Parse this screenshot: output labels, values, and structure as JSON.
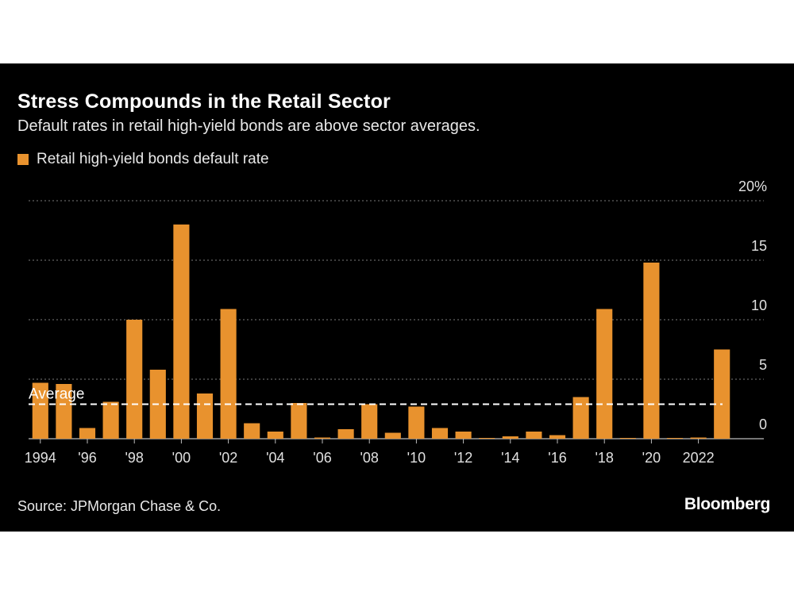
{
  "title": "Stress Compounds in the Retail Sector",
  "subtitle": "Default rates in retail high-yield bonds are above sector averages.",
  "source": "Source: JPMorgan Chase & Co.",
  "brand": "Bloomberg",
  "colors": {
    "bar": "#e8922e",
    "background": "#000000",
    "grid": "#7a7a7a",
    "average_line": "#ffffff"
  },
  "chart_data": {
    "type": "bar",
    "categories": [
      "1994",
      "1995",
      "1996",
      "1997",
      "1998",
      "1999",
      "2000",
      "2001",
      "2002",
      "2003",
      "2004",
      "2005",
      "2006",
      "2007",
      "2008",
      "2009",
      "2010",
      "2011",
      "2012",
      "2013",
      "2014",
      "2015",
      "2016",
      "2017",
      "2018",
      "2019",
      "2020",
      "2021",
      "2022",
      "2023"
    ],
    "series": [
      {
        "name": "Retail high-yield bonds default rate",
        "values": [
          4.7,
          4.6,
          0.9,
          3.1,
          10.0,
          5.8,
          18.0,
          3.8,
          10.9,
          1.3,
          0.6,
          3.0,
          0.1,
          0.8,
          2.9,
          0.5,
          2.7,
          0.9,
          0.6,
          0.05,
          0.2,
          0.6,
          0.3,
          3.5,
          10.9,
          0.05,
          14.8,
          0.05,
          0.1,
          7.5
        ]
      }
    ],
    "average": {
      "label": "Average",
      "value": 2.9
    },
    "x_tick_labels": [
      {
        "category": "1994",
        "label": "1994"
      },
      {
        "category": "1996",
        "label": "'96"
      },
      {
        "category": "1998",
        "label": "'98"
      },
      {
        "category": "2000",
        "label": "'00"
      },
      {
        "category": "2002",
        "label": "'02"
      },
      {
        "category": "2004",
        "label": "'04"
      },
      {
        "category": "2006",
        "label": "'06"
      },
      {
        "category": "2008",
        "label": "'08"
      },
      {
        "category": "2010",
        "label": "'10"
      },
      {
        "category": "2012",
        "label": "'12"
      },
      {
        "category": "2014",
        "label": "'14"
      },
      {
        "category": "2016",
        "label": "'16"
      },
      {
        "category": "2018",
        "label": "'18"
      },
      {
        "category": "2020",
        "label": "'20"
      },
      {
        "category": "2022",
        "label": "2022"
      }
    ],
    "y_ticks": [
      {
        "value": 0,
        "label": "0"
      },
      {
        "value": 5,
        "label": "5"
      },
      {
        "value": 10,
        "label": "10"
      },
      {
        "value": 15,
        "label": "15"
      },
      {
        "value": 20,
        "label": "20%"
      }
    ],
    "ylim": [
      0,
      20
    ],
    "grid": true,
    "legend_position": "top-left"
  }
}
